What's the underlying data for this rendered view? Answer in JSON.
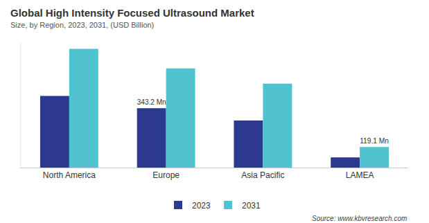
{
  "chart_data": {
    "type": "bar",
    "title": "Global High Intensity Focused Ultrasound Market",
    "subtitle": "Size, by Region, 2023, 2031, (USD Billion)",
    "source": "Source: www.kbvresearch.com",
    "categories": [
      "North America",
      "Europe",
      "Asia Pacific",
      "LAMEA"
    ],
    "series": [
      {
        "name": "2023",
        "color": "#2b3990",
        "values": [
          414,
          343.2,
          272,
          59
        ],
        "value_labels": [
          null,
          "343.2 Mn",
          null,
          null
        ]
      },
      {
        "name": "2031",
        "color": "#4fc3cf",
        "values": [
          686,
          573,
          485,
          119.1
        ],
        "value_labels": [
          null,
          null,
          null,
          "119.1 Mn"
        ]
      }
    ],
    "ylim": [
      0,
      720
    ],
    "yticks": [],
    "grid": false,
    "legend": "bottom",
    "tick_labels": "x"
  }
}
